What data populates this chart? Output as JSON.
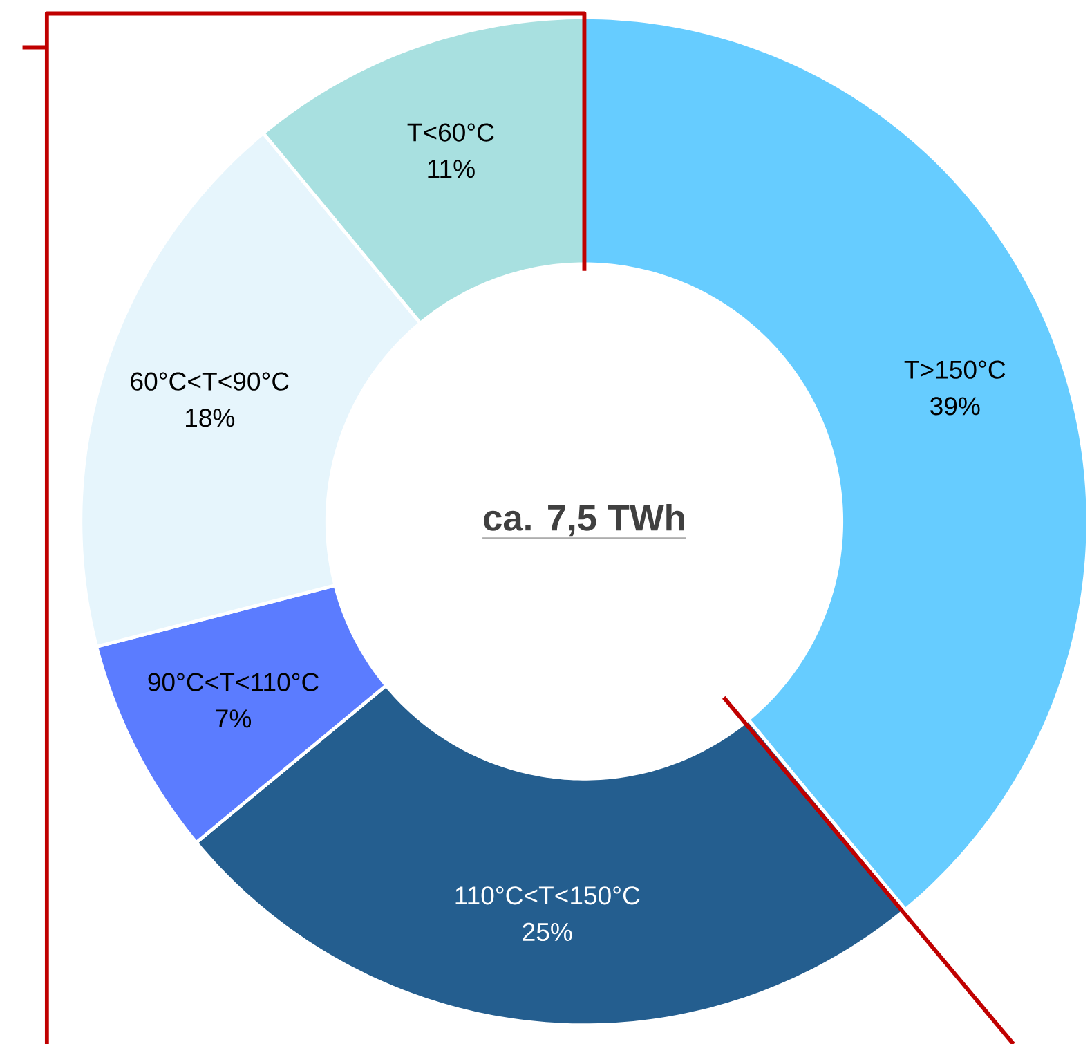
{
  "chart_data": {
    "type": "donut",
    "categories": [
      "T>150°C",
      "110°C<T<150°C",
      "90°C<T<110°C",
      "60°C<T<90°C",
      "T<60°C"
    ],
    "values": [
      39,
      25,
      7,
      18,
      11
    ],
    "colors": [
      "#66ccff",
      "#245e8f",
      "#5b7cff",
      "#e6f5fc",
      "#a8e0e0"
    ],
    "value_labels": [
      "39%",
      "25%",
      "7%",
      "18%",
      "11%"
    ],
    "annotations": [
      "ca. 7,5 TWh"
    ]
  }
}
